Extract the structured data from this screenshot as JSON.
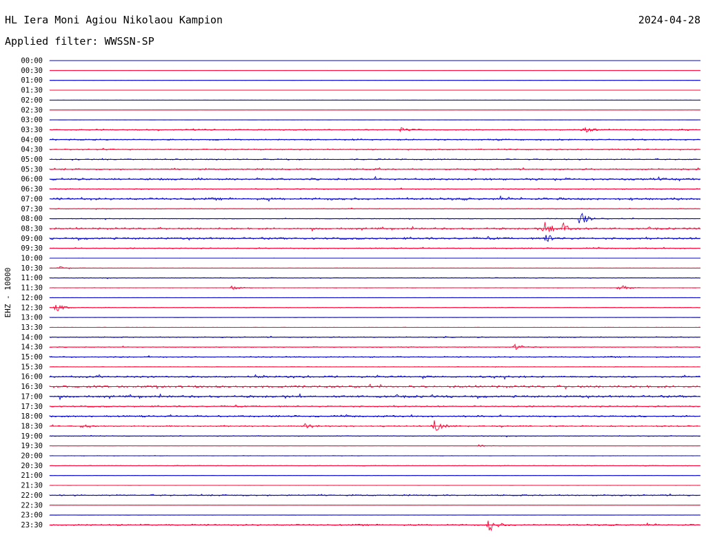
{
  "header": {
    "station": "HL Iera Moni Agiou Nikolaou Kampion",
    "date": "2024-04-28",
    "filter_label": "Applied filter:",
    "filter_value": "WWSSN-SP"
  },
  "chart_data": {
    "type": "line",
    "title": "HL Iera Moni Agiou Nikolaou Kampion",
    "ylabel": "EHZ - 10000",
    "colors": [
      "#0000cc",
      "#ff0033"
    ],
    "rows": [
      {
        "time": "00:00",
        "activity": 0.05
      },
      {
        "time": "00:30",
        "activity": 0.02
      },
      {
        "time": "01:00",
        "activity": 0.05
      },
      {
        "time": "01:30",
        "activity": 0.03
      },
      {
        "time": "02:00",
        "activity": 0.05
      },
      {
        "time": "02:30",
        "activity": 0.02
      },
      {
        "time": "03:00",
        "activity": 0.05
      },
      {
        "time": "03:30",
        "activity": 0.45,
        "events": [
          {
            "pos": 0.82,
            "amp": 5
          },
          {
            "pos": 0.54,
            "amp": 3
          }
        ]
      },
      {
        "time": "04:00",
        "activity": 0.55
      },
      {
        "time": "04:30",
        "activity": 0.5
      },
      {
        "time": "05:00",
        "activity": 0.45
      },
      {
        "time": "05:30",
        "activity": 0.6
      },
      {
        "time": "06:00",
        "activity": 0.8
      },
      {
        "time": "06:30",
        "activity": 0.4
      },
      {
        "time": "07:00",
        "activity": 0.9
      },
      {
        "time": "07:30",
        "activity": 0.3
      },
      {
        "time": "08:00",
        "activity": 0.3,
        "events": [
          {
            "pos": 0.815,
            "amp": 10
          }
        ]
      },
      {
        "time": "08:30",
        "activity": 0.7,
        "events": [
          {
            "pos": 0.76,
            "amp": 10
          },
          {
            "pos": 0.79,
            "amp": 8
          }
        ]
      },
      {
        "time": "09:00",
        "activity": 0.8,
        "events": [
          {
            "pos": 0.76,
            "amp": 7
          }
        ]
      },
      {
        "time": "09:30",
        "activity": 0.45
      },
      {
        "time": "10:00",
        "activity": 0.08
      },
      {
        "time": "10:30",
        "activity": 0.12,
        "events": [
          {
            "pos": 0.015,
            "amp": 3
          }
        ]
      },
      {
        "time": "11:00",
        "activity": 0.3
      },
      {
        "time": "11:30",
        "activity": 0.15,
        "events": [
          {
            "pos": 0.875,
            "amp": 6
          },
          {
            "pos": 0.28,
            "amp": 3
          }
        ]
      },
      {
        "time": "12:00",
        "activity": 0.08
      },
      {
        "time": "12:30",
        "activity": 0.25,
        "events": [
          {
            "pos": 0.01,
            "amp": 6
          }
        ]
      },
      {
        "time": "13:00",
        "activity": 0.1
      },
      {
        "time": "13:30",
        "activity": 0.15
      },
      {
        "time": "14:00",
        "activity": 0.4
      },
      {
        "time": "14:30",
        "activity": 0.3,
        "events": [
          {
            "pos": 0.715,
            "amp": 4
          }
        ]
      },
      {
        "time": "15:00",
        "activity": 0.45
      },
      {
        "time": "15:30",
        "activity": 0.2
      },
      {
        "time": "16:00",
        "activity": 0.75
      },
      {
        "time": "16:30",
        "activity": 0.85
      },
      {
        "time": "17:00",
        "activity": 0.85
      },
      {
        "time": "17:30",
        "activity": 0.55
      },
      {
        "time": "18:00",
        "activity": 0.65
      },
      {
        "time": "18:30",
        "activity": 0.5,
        "events": [
          {
            "pos": 0.59,
            "amp": 9
          },
          {
            "pos": 0.39,
            "amp": 4
          },
          {
            "pos": 0.05,
            "amp": 3
          }
        ]
      },
      {
        "time": "19:00",
        "activity": 0.35
      },
      {
        "time": "19:30",
        "activity": 0.08,
        "events": [
          {
            "pos": 0.66,
            "amp": 2
          }
        ]
      },
      {
        "time": "20:00",
        "activity": 0.15
      },
      {
        "time": "20:30",
        "activity": 0.25
      },
      {
        "time": "21:00",
        "activity": 0.1
      },
      {
        "time": "21:30",
        "activity": 0.08
      },
      {
        "time": "22:00",
        "activity": 0.55
      },
      {
        "time": "22:30",
        "activity": 0.05
      },
      {
        "time": "23:00",
        "activity": 0.1
      },
      {
        "time": "23:30",
        "activity": 0.6,
        "events": [
          {
            "pos": 0.675,
            "amp": 10
          }
        ]
      }
    ]
  }
}
